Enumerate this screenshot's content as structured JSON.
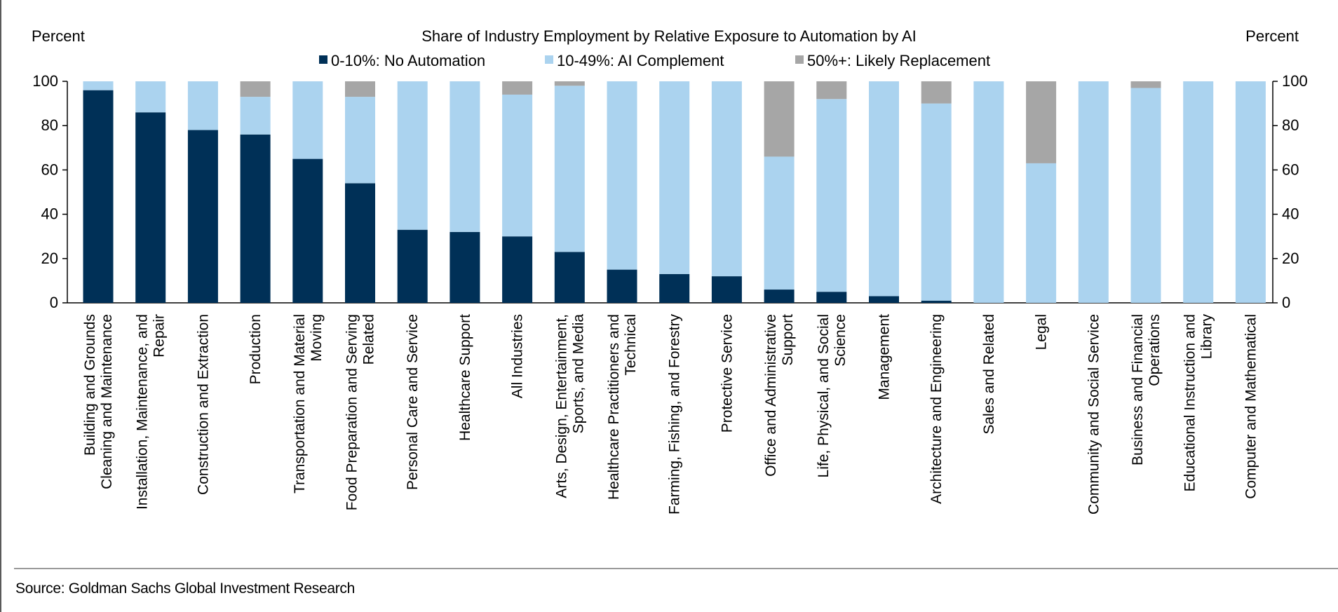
{
  "chart_data": {
    "type": "bar",
    "stacked": true,
    "title": "Share of Industry Employment by Relative Exposure to Automation by AI",
    "ylabel_left": "Percent",
    "ylabel_right": "Percent",
    "ylim": [
      0,
      100
    ],
    "yticks": [
      0,
      20,
      40,
      60,
      80,
      100
    ],
    "grid": false,
    "legend_position": "top-center",
    "categories": [
      "Building and Grounds Cleaning and Maintenance",
      "Installation, Maintenance, and Repair",
      "Construction and Extraction",
      "Production",
      "Transportation and Material Moving",
      "Food Preparation and Serving Related",
      "Personal Care and Service",
      "Healthcare Support",
      "All Industries",
      "Arts, Design, Entertainment, Sports, and Media",
      "Healthcare Practitioners and Technical",
      "Farming, Fishing, and Forestry",
      "Protective Service",
      "Office and Administrative Support",
      "Life, Physical, and Social Science",
      "Management",
      "Architecture and Engineering",
      "Sales and Related",
      "Legal",
      "Community and Social Service",
      "Business and Financial Operations",
      "Educational Instruction and Library",
      "Computer and Mathematical"
    ],
    "category_label_lines": [
      [
        "Building and Grounds",
        "Cleaning and Maintenance"
      ],
      [
        "Installation, Maintenance, and",
        "Repair"
      ],
      [
        "Construction and Extraction"
      ],
      [
        "Production"
      ],
      [
        "Transportation and Material",
        "Moving"
      ],
      [
        "Food Preparation and Serving",
        "Related"
      ],
      [
        "Personal Care and Service"
      ],
      [
        "Healthcare Support"
      ],
      [
        "All Industries"
      ],
      [
        "Arts, Design, Entertainment,",
        "Sports, and Media"
      ],
      [
        "Healthcare Practitioners and",
        "Technical"
      ],
      [
        "Farming, Fishing, and Forestry"
      ],
      [
        "Protective Service"
      ],
      [
        "Office and Administrative",
        "Support"
      ],
      [
        "Life, Physical, and Social",
        "Science"
      ],
      [
        "Management"
      ],
      [
        "Architecture and Engineering"
      ],
      [
        "Sales and Related"
      ],
      [
        "Legal"
      ],
      [
        "Community and Social Service"
      ],
      [
        "Business and Financial",
        "Operations"
      ],
      [
        "Educational Instruction and",
        "Library"
      ],
      [
        "Computer and Mathematical"
      ]
    ],
    "series": [
      {
        "name": "0-10%: No Automation",
        "color": "#003057",
        "values": [
          96,
          86,
          78,
          76,
          65,
          54,
          33,
          32,
          30,
          23,
          15,
          13,
          12,
          6,
          5,
          3,
          1,
          0,
          0,
          0,
          0,
          0,
          0
        ]
      },
      {
        "name": "10-49%: AI Complement",
        "color": "#abd3ef",
        "values": [
          4,
          14,
          22,
          17,
          35,
          39,
          67,
          68,
          64,
          75,
          85,
          87,
          88,
          60,
          87,
          97,
          89,
          100,
          63,
          100,
          97,
          100,
          100
        ]
      },
      {
        "name": "50%+: Likely Replacement",
        "color": "#a6a6a6",
        "values": [
          0,
          0,
          0,
          7,
          0,
          7,
          0,
          0,
          6,
          2,
          0,
          0,
          0,
          34,
          8,
          0,
          10,
          0,
          37,
          0,
          3,
          0,
          0
        ]
      }
    ]
  },
  "source": "Source: Goldman Sachs Global Investment Research"
}
